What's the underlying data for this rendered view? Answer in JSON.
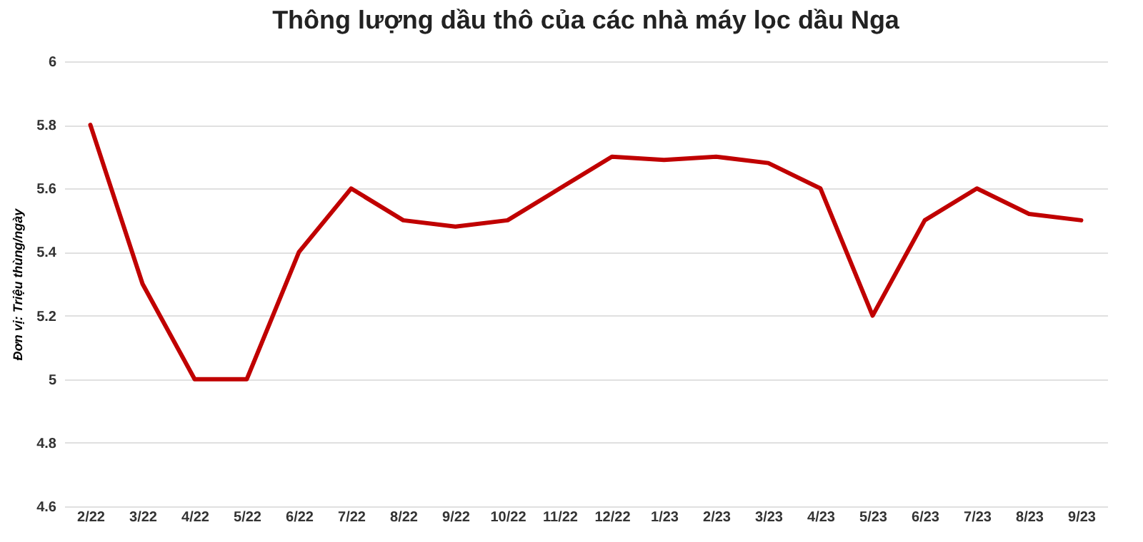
{
  "chart_data": {
    "type": "line",
    "title": "Thông lượng dầu thô của các nhà máy lọc dầu Nga",
    "ylabel": "Đơn vị: Triệu thùng/ngày",
    "categories": [
      "2/22",
      "3/22",
      "4/22",
      "5/22",
      "6/22",
      "7/22",
      "8/22",
      "9/22",
      "10/22",
      "11/22",
      "12/22",
      "1/23",
      "2/23",
      "3/23",
      "4/23",
      "5/23",
      "6/23",
      "7/23",
      "8/23",
      "9/23"
    ],
    "series": [
      {
        "color": "#c00000",
        "values": [
          5.8,
          5.3,
          5.0,
          5.0,
          5.4,
          5.6,
          5.5,
          5.48,
          5.5,
          5.6,
          5.7,
          5.69,
          5.7,
          5.68,
          5.6,
          5.2,
          5.5,
          5.6,
          5.52,
          5.5
        ]
      }
    ],
    "ylim": [
      4.6,
      6
    ],
    "yticks": [
      4.6,
      4.8,
      5,
      5.2,
      5.4,
      5.6,
      5.8,
      6
    ],
    "grid": "y",
    "line_style": "solid",
    "legend": false
  }
}
